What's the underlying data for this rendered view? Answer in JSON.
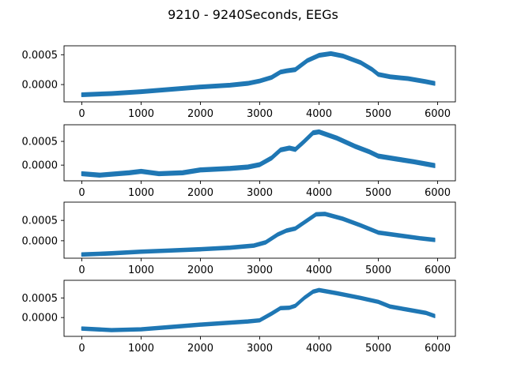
{
  "figure": {
    "title": "9210 - 9240Seconds, EEGs",
    "line_color": "#1f77b4"
  },
  "chart_data": [
    {
      "type": "line",
      "title": "",
      "xlabel": "",
      "ylabel": "",
      "xlim": [
        -300,
        6300
      ],
      "ylim": [
        -0.00029,
        0.00065
      ],
      "xticks": [
        0,
        1000,
        2000,
        3000,
        4000,
        5000,
        6000
      ],
      "xtick_labels": [
        "0",
        "1000",
        "2000",
        "3000",
        "4000",
        "5000",
        "6000"
      ],
      "yticks": [
        0.0,
        0.0005
      ],
      "ytick_labels": [
        "0.0000",
        "0.0005"
      ],
      "grid": false,
      "band_halfwidth": 3e-05,
      "series": [
        {
          "x": [
            0,
            500,
            1000,
            1500,
            2000,
            2500,
            2800,
            3000,
            3200,
            3350,
            3450,
            3600,
            3800,
            4000,
            4200,
            4400,
            4700,
            4900,
            5000,
            5200,
            5500,
            5800,
            5950
          ],
          "y": [
            -0.00017,
            -0.00015,
            -0.00012,
            -8e-05,
            -4e-05,
            -1e-05,
            2e-05,
            6e-05,
            0.00012,
            0.00021,
            0.00023,
            0.00025,
            0.0004,
            0.00049,
            0.00052,
            0.00048,
            0.00037,
            0.00025,
            0.00017,
            0.00013,
            0.0001,
            5e-05,
            2e-05
          ]
        }
      ]
    },
    {
      "type": "line",
      "title": "",
      "xlabel": "",
      "ylabel": "",
      "xlim": [
        -300,
        6300
      ],
      "ylim": [
        -0.00033,
        0.00085
      ],
      "xticks": [
        0,
        1000,
        2000,
        3000,
        4000,
        5000,
        6000
      ],
      "xtick_labels": [
        "0",
        "1000",
        "2000",
        "3000",
        "4000",
        "5000",
        "6000"
      ],
      "yticks": [
        0.0,
        0.0005
      ],
      "ytick_labels": [
        "0.0000",
        "0.0005"
      ],
      "grid": false,
      "band_halfwidth": 4e-05,
      "series": [
        {
          "x": [
            0,
            300,
            800,
            1000,
            1300,
            1700,
            2000,
            2500,
            2800,
            3000,
            3200,
            3350,
            3500,
            3600,
            3750,
            3900,
            4000,
            4300,
            4600,
            4850,
            5000,
            5300,
            5600,
            5950
          ],
          "y": [
            -0.00018,
            -0.00021,
            -0.00016,
            -0.00013,
            -0.00018,
            -0.00016,
            -0.0001,
            -7e-05,
            -4e-05,
            1e-05,
            0.00015,
            0.00032,
            0.00036,
            0.00033,
            0.0005,
            0.00068,
            0.0007,
            0.00057,
            0.0004,
            0.00028,
            0.00019,
            0.00013,
            7e-05,
            -1e-05
          ]
        }
      ]
    },
    {
      "type": "line",
      "title": "",
      "xlabel": "",
      "ylabel": "",
      "xlim": [
        -300,
        6300
      ],
      "ylim": [
        -0.00043,
        0.00095
      ],
      "xticks": [
        0,
        1000,
        2000,
        3000,
        4000,
        5000,
        6000
      ],
      "xtick_labels": [
        "0",
        "1000",
        "2000",
        "3000",
        "4000",
        "5000",
        "6000"
      ],
      "yticks": [
        0.0,
        0.0005
      ],
      "ytick_labels": [
        "0.0000",
        "0.0005"
      ],
      "grid": false,
      "band_halfwidth": 4e-05,
      "series": [
        {
          "x": [
            0,
            500,
            1000,
            1500,
            2000,
            2500,
            2900,
            3100,
            3300,
            3450,
            3600,
            3800,
            3950,
            4100,
            4400,
            4700,
            5000,
            5400,
            5700,
            5950
          ],
          "y": [
            -0.00034,
            -0.00031,
            -0.00027,
            -0.00024,
            -0.00021,
            -0.00017,
            -0.00012,
            -4e-05,
            0.00015,
            0.00025,
            0.0003,
            0.0005,
            0.00065,
            0.00066,
            0.00054,
            0.00038,
            0.0002,
            0.00012,
            6e-05,
            2e-05
          ]
        }
      ]
    },
    {
      "type": "line",
      "title": "",
      "xlabel": "",
      "ylabel": "",
      "xlim": [
        -300,
        6300
      ],
      "ylim": [
        -0.00048,
        0.00095
      ],
      "xticks": [
        0,
        1000,
        2000,
        3000,
        4000,
        5000,
        6000
      ],
      "xtick_labels": [
        "0",
        "1000",
        "2000",
        "3000",
        "4000",
        "5000",
        "6000"
      ],
      "yticks": [
        0.0,
        0.0005
      ],
      "ytick_labels": [
        "0.0000",
        "0.0005"
      ],
      "grid": false,
      "band_halfwidth": 4e-05,
      "series": [
        {
          "x": [
            0,
            500,
            1000,
            1500,
            2000,
            2500,
            2800,
            3000,
            3200,
            3350,
            3500,
            3600,
            3750,
            3900,
            4000,
            4300,
            4700,
            5000,
            5200,
            5500,
            5800,
            5950
          ],
          "y": [
            -0.00028,
            -0.00032,
            -0.0003,
            -0.00024,
            -0.00018,
            -0.00013,
            -0.0001,
            -7e-05,
            0.0001,
            0.00024,
            0.00025,
            0.0003,
            0.0005,
            0.00066,
            0.0007,
            0.00062,
            0.0005,
            0.0004,
            0.00028,
            0.0002,
            0.00012,
            4e-05
          ]
        }
      ]
    }
  ]
}
